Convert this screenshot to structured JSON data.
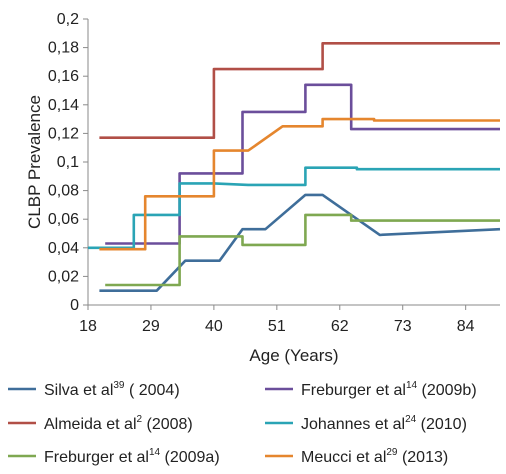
{
  "chart_data": {
    "type": "line",
    "title": "",
    "xlabel": "Age (Years)",
    "ylabel": "CLBP Prevalence",
    "xlim": [
      18,
      90
    ],
    "ylim": [
      0,
      0.2
    ],
    "x_ticks": [
      18,
      29,
      40,
      51,
      62,
      73,
      84
    ],
    "x_tick_labels": [
      "18",
      "29",
      "40",
      "51",
      "62",
      "73",
      "84"
    ],
    "y_ticks": [
      0,
      0.02,
      0.04,
      0.06,
      0.08,
      0.1,
      0.12,
      0.14,
      0.16,
      0.18,
      0.2
    ],
    "y_tick_labels": [
      "0",
      "0,02",
      "0,04",
      "0,06",
      "0,08",
      "0,1",
      "0,12",
      "0,14",
      "0,16",
      "0,18",
      "0,2"
    ],
    "grid": false,
    "legend_position": "bottom",
    "series": [
      {
        "name": "Silva et al",
        "ref": "39",
        "year_label": " ( 2004)",
        "color": "#3f6e9a",
        "x": [
          20,
          30,
          30,
          35,
          35,
          41,
          41,
          45,
          45,
          49,
          49,
          56,
          56,
          59,
          59,
          69,
          69,
          90
        ],
        "y": [
          0.01,
          0.01,
          0.01,
          0.031,
          0.031,
          0.031,
          0.031,
          0.053,
          0.053,
          0.053,
          0.053,
          0.077,
          0.077,
          0.077,
          0.077,
          0.049,
          0.049,
          0.053
        ]
      },
      {
        "name": "Freburger et al",
        "ref": "14",
        "year_label": " (2009b)",
        "color": "#6b4e9b",
        "x": [
          21,
          34,
          34,
          45,
          45,
          52,
          52,
          56,
          56,
          64,
          64,
          90
        ],
        "y": [
          0.043,
          0.043,
          0.092,
          0.092,
          0.135,
          0.135,
          0.135,
          0.135,
          0.154,
          0.154,
          0.123,
          0.123
        ]
      },
      {
        "name": "Almeida et al",
        "ref": "2",
        "year_label": " (2008)",
        "color": "#b14f47",
        "x": [
          20,
          40,
          40,
          59,
          59,
          90
        ],
        "y": [
          0.117,
          0.117,
          0.165,
          0.165,
          0.183,
          0.183
        ]
      },
      {
        "name": "Johannes et al",
        "ref": "24",
        "year_label": " (2010)",
        "color": "#2aa4b5",
        "x": [
          18,
          26,
          26,
          34,
          34,
          40,
          40,
          46,
          46,
          56,
          56,
          65,
          65,
          90
        ],
        "y": [
          0.04,
          0.04,
          0.063,
          0.063,
          0.085,
          0.085,
          0.085,
          0.084,
          0.084,
          0.084,
          0.096,
          0.096,
          0.095,
          0.095
        ]
      },
      {
        "name": "Freburger et al",
        "ref": "14",
        "year_label": " (2009a)",
        "color": "#7fa851",
        "x": [
          21,
          34,
          34,
          45,
          45,
          49,
          49,
          56,
          56,
          64,
          64,
          90
        ],
        "y": [
          0.014,
          0.014,
          0.048,
          0.048,
          0.042,
          0.042,
          0.042,
          0.042,
          0.063,
          0.063,
          0.059,
          0.059
        ]
      },
      {
        "name": "Meucci et al",
        "ref": "29",
        "year_label": " (2013)",
        "color": "#e5862e",
        "x": [
          20,
          28,
          28,
          35,
          35,
          40,
          40,
          46,
          46,
          52,
          52,
          59,
          59,
          68,
          68,
          90
        ],
        "y": [
          0.039,
          0.039,
          0.076,
          0.076,
          0.076,
          0.076,
          0.108,
          0.108,
          0.108,
          0.125,
          0.125,
          0.125,
          0.13,
          0.13,
          0.129,
          0.129
        ]
      }
    ]
  }
}
